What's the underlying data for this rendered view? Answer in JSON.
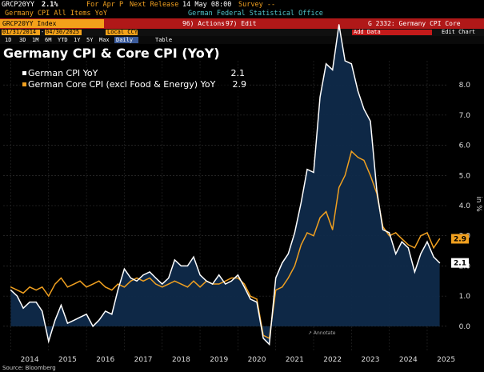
{
  "header": {
    "ticker": "GRCP20YY",
    "last_value": "2.1%",
    "period": "For Apr P",
    "next_release_label": "Next Release",
    "next_release_time": "14 May 08:00",
    "survey": "Survey --",
    "security_name": "Germany CPI All Items YoY",
    "source_name": "German Federal Statistical Office"
  },
  "command_bar": {
    "index_label": "GRCP20YY Index",
    "actions_label": "96) Actions",
    "edit_label": "97) Edit",
    "chart_title": "G 2332: Germany CPI Core"
  },
  "toolbar": {
    "start_date": "01/31/2014",
    "end_date": "04/30/2025",
    "currency": "Local CCY",
    "add_data": "Add Data",
    "edit_chart": "Edit Chart",
    "periods": [
      "1D",
      "3D",
      "1M",
      "6M",
      "YTD",
      "1Y",
      "5Y",
      "Max"
    ],
    "frequency": "Daily",
    "table_label": "Table"
  },
  "colors": {
    "white_series": "#ffffff",
    "core_series": "#f0a020",
    "area_fill": "#0f2a4a",
    "bg": "#000000"
  },
  "chart_data": {
    "type": "line",
    "title": "Germany CPI & Core CPI (YoY)",
    "ylabel": "in %",
    "ylim": [
      -0.8,
      8.8
    ],
    "yticks": [
      "0.0",
      "1.0",
      "2.0",
      "3.0",
      "4.0",
      "5.0",
      "6.0",
      "7.0",
      "8.0"
    ],
    "xticks": [
      "2014",
      "2015",
      "2016",
      "2017",
      "2018",
      "2019",
      "2020",
      "2021",
      "2022",
      "2023",
      "2024",
      "2025"
    ],
    "grid": true,
    "legend": "top-left",
    "annotation": "Annotate",
    "footer": "Source: Bloomberg",
    "series": [
      {
        "name": "German CPI YoY",
        "last": "2.1",
        "color": "#ffffff",
        "x": [
          2014.0,
          2014.17,
          2014.33,
          2014.5,
          2014.67,
          2014.83,
          2015.0,
          2015.17,
          2015.33,
          2015.5,
          2015.67,
          2015.83,
          2016.0,
          2016.17,
          2016.33,
          2016.5,
          2016.67,
          2016.83,
          2017.0,
          2017.17,
          2017.33,
          2017.5,
          2017.67,
          2017.83,
          2018.0,
          2018.17,
          2018.33,
          2018.5,
          2018.67,
          2018.83,
          2019.0,
          2019.17,
          2019.33,
          2019.5,
          2019.67,
          2019.83,
          2020.0,
          2020.17,
          2020.33,
          2020.5,
          2020.67,
          2020.83,
          2021.0,
          2021.17,
          2021.33,
          2021.5,
          2021.67,
          2021.83,
          2022.0,
          2022.17,
          2022.33,
          2022.5,
          2022.67,
          2022.83,
          2023.0,
          2023.17,
          2023.33,
          2023.5,
          2023.67,
          2023.83,
          2024.0,
          2024.17,
          2024.33,
          2024.5,
          2024.67,
          2024.83,
          2025.0,
          2025.17,
          2025.33
        ],
        "values": [
          1.2,
          1.0,
          0.6,
          0.8,
          0.8,
          0.5,
          -0.5,
          0.2,
          0.7,
          0.1,
          0.2,
          0.3,
          0.4,
          0.0,
          0.2,
          0.5,
          0.4,
          1.2,
          1.9,
          1.6,
          1.5,
          1.7,
          1.8,
          1.6,
          1.4,
          1.6,
          2.2,
          2.0,
          2.0,
          2.3,
          1.7,
          1.5,
          1.4,
          1.7,
          1.4,
          1.5,
          1.7,
          1.3,
          0.9,
          0.8,
          -0.4,
          -0.6,
          1.6,
          2.1,
          2.4,
          3.1,
          4.1,
          5.2,
          5.1,
          7.6,
          8.7,
          8.5,
          10.0,
          8.8,
          8.7,
          7.8,
          7.2,
          6.8,
          4.5,
          3.2,
          3.1,
          2.4,
          2.8,
          2.6,
          1.8,
          2.4,
          2.8,
          2.3,
          2.1
        ]
      },
      {
        "name": "German Core CPI (excl Food & Energy) YoY",
        "last": "2.9",
        "color": "#f0a020",
        "x": [
          2014.0,
          2014.17,
          2014.33,
          2014.5,
          2014.67,
          2014.83,
          2015.0,
          2015.17,
          2015.33,
          2015.5,
          2015.67,
          2015.83,
          2016.0,
          2016.17,
          2016.33,
          2016.5,
          2016.67,
          2016.83,
          2017.0,
          2017.17,
          2017.33,
          2017.5,
          2017.67,
          2017.83,
          2018.0,
          2018.17,
          2018.33,
          2018.5,
          2018.67,
          2018.83,
          2019.0,
          2019.17,
          2019.33,
          2019.5,
          2019.67,
          2019.83,
          2020.0,
          2020.17,
          2020.33,
          2020.5,
          2020.67,
          2020.83,
          2021.0,
          2021.17,
          2021.33,
          2021.5,
          2021.67,
          2021.83,
          2022.0,
          2022.17,
          2022.33,
          2022.5,
          2022.67,
          2022.83,
          2023.0,
          2023.17,
          2023.33,
          2023.5,
          2023.67,
          2023.83,
          2024.0,
          2024.17,
          2024.33,
          2024.5,
          2024.67,
          2024.83,
          2025.0,
          2025.17,
          2025.33
        ],
        "values": [
          1.3,
          1.2,
          1.1,
          1.3,
          1.2,
          1.3,
          1.0,
          1.4,
          1.6,
          1.3,
          1.4,
          1.5,
          1.3,
          1.4,
          1.5,
          1.3,
          1.2,
          1.4,
          1.3,
          1.5,
          1.6,
          1.5,
          1.6,
          1.4,
          1.3,
          1.4,
          1.5,
          1.4,
          1.3,
          1.5,
          1.3,
          1.5,
          1.4,
          1.4,
          1.5,
          1.6,
          1.6,
          1.4,
          1.0,
          0.9,
          -0.3,
          -0.4,
          1.2,
          1.3,
          1.6,
          2.0,
          2.7,
          3.1,
          3.0,
          3.6,
          3.8,
          3.2,
          4.6,
          5.0,
          5.8,
          5.6,
          5.5,
          5.0,
          4.4,
          3.3,
          3.0,
          3.1,
          2.9,
          2.7,
          2.6,
          3.0,
          3.1,
          2.6,
          2.9
        ]
      }
    ]
  }
}
